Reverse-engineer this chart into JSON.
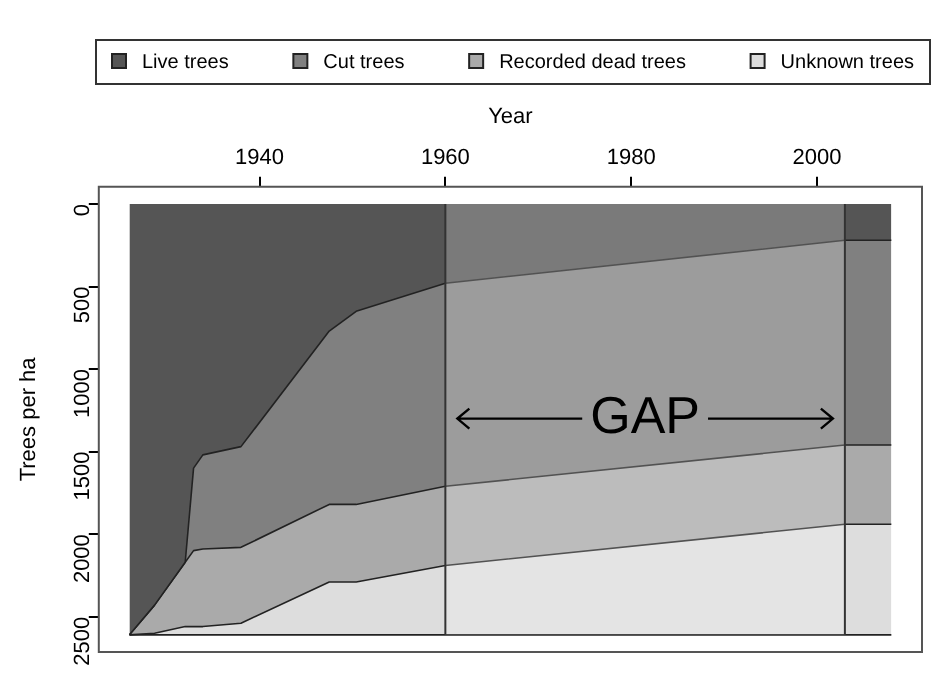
{
  "chart_data": {
    "type": "area",
    "stacked": true,
    "xlabel": "Year",
    "ylabel": "Trees per ha",
    "x": [
      1926,
      1928.7,
      1932,
      1932.9,
      1933.9,
      1938,
      1947.5,
      1950.4,
      1960,
      2003,
      2008
    ],
    "series": [
      {
        "name": "Live trees",
        "color": "#555555",
        "values": [
          2610,
          2430,
          2170,
          1600,
          1520,
          1470,
          770,
          650,
          480,
          220,
          220
        ]
      },
      {
        "name": "Cut trees",
        "color": "#808080",
        "values": [
          0,
          0,
          0,
          500,
          570,
          610,
          1050,
          1170,
          1230,
          1240,
          1240
        ]
      },
      {
        "name": "Recorded dead trees",
        "color": "#aaaaaa",
        "values": [
          0,
          170,
          390,
          460,
          470,
          460,
          470,
          470,
          480,
          480,
          480
        ]
      },
      {
        "name": "Unknown trees",
        "color": "#dddddd",
        "values": [
          0,
          10,
          50,
          50,
          50,
          70,
          320,
          320,
          420,
          670,
          670
        ]
      }
    ],
    "xlim": [
      1922.7,
      2011.3
    ],
    "xticks": [
      1940,
      1960,
      1980,
      2000
    ],
    "ylim": [
      2714,
      -104
    ],
    "yticks": [
      0,
      500,
      1000,
      1500,
      2000,
      2500
    ],
    "bands": [
      {
        "axis": "x",
        "from": 1960,
        "to": 2003,
        "label": "GAP",
        "color": "#ffffff"
      }
    ],
    "ref_lines": [
      {
        "axis": "x",
        "value": 1960,
        "color": "#333333"
      },
      {
        "axis": "x",
        "value": 2003,
        "color": "#333333"
      }
    ],
    "legend": "top"
  }
}
